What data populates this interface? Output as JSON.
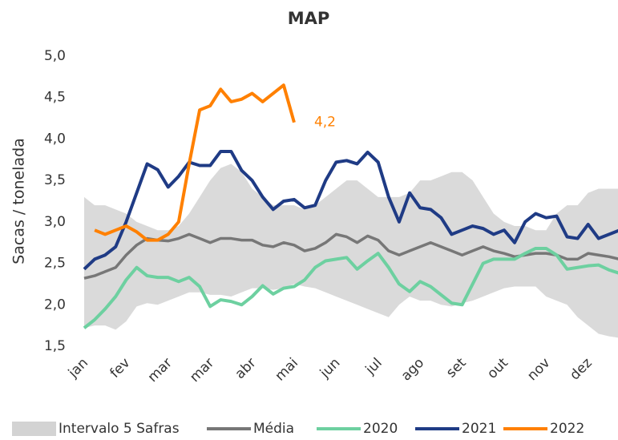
{
  "chart_data": {
    "type": "line",
    "title": "MAP",
    "ylabel": "Sacas / tonelada",
    "categories": [
      "jan",
      null,
      null,
      null,
      "fev",
      null,
      null,
      null,
      "mar",
      null,
      null,
      null,
      "mar",
      null,
      null,
      null,
      "abr",
      null,
      null,
      null,
      "mai",
      null,
      null,
      null,
      "jun",
      null,
      null,
      null,
      "jul",
      null,
      null,
      null,
      "ago",
      null,
      null,
      null,
      "set",
      null,
      null,
      null,
      "out",
      null,
      null,
      null,
      "nov",
      null,
      null,
      null,
      "dez",
      null,
      null,
      null
    ],
    "ylim": [
      1.5,
      5.0
    ],
    "yticks": [
      {
        "value": 1.5,
        "label": "1,5"
      },
      {
        "value": 2.0,
        "label": "2,0"
      },
      {
        "value": 2.5,
        "label": "2,5"
      },
      {
        "value": 3.0,
        "label": "3,0"
      },
      {
        "value": 3.5,
        "label": "3,5"
      },
      {
        "value": 4.0,
        "label": "4,0"
      },
      {
        "value": 4.5,
        "label": "4,5"
      },
      {
        "value": 5.0,
        "label": "5,0"
      }
    ],
    "legend": "bottom",
    "series": [
      {
        "name": "Intervalo 5 Safras",
        "color": "#d3d3d3",
        "upper": [
          3.3,
          3.2,
          3.2,
          3.15,
          3.1,
          3.0,
          2.95,
          2.9,
          2.9,
          2.95,
          3.1,
          3.3,
          3.5,
          3.65,
          3.7,
          3.6,
          3.4,
          3.3,
          3.2,
          3.2,
          3.2,
          3.15,
          3.2,
          3.3,
          3.4,
          3.5,
          3.5,
          3.4,
          3.3,
          3.3,
          3.3,
          3.35,
          3.5,
          3.5,
          3.55,
          3.6,
          3.6,
          3.5,
          3.3,
          3.1,
          3.0,
          2.95,
          2.95,
          2.9,
          2.9,
          3.1,
          3.2,
          3.2,
          3.35,
          3.4,
          3.4,
          3.4
        ],
        "lower": [
          1.72,
          1.75,
          1.75,
          1.7,
          1.8,
          1.98,
          2.02,
          2.0,
          2.05,
          2.1,
          2.15,
          2.15,
          2.12,
          2.12,
          2.1,
          2.15,
          2.2,
          2.2,
          2.18,
          2.2,
          2.25,
          2.22,
          2.2,
          2.15,
          2.1,
          2.05,
          2.0,
          1.95,
          1.9,
          1.85,
          2.0,
          2.1,
          2.05,
          2.05,
          2.0,
          1.98,
          2.02,
          2.05,
          2.1,
          2.15,
          2.2,
          2.22,
          2.22,
          2.22,
          2.1,
          2.05,
          2.0,
          1.85,
          1.75,
          1.65,
          1.62,
          1.6
        ]
      },
      {
        "name": "Média",
        "color": "#777777",
        "values": [
          2.32,
          2.35,
          2.4,
          2.45,
          2.6,
          2.72,
          2.8,
          2.78,
          2.77,
          2.8,
          2.85,
          2.8,
          2.75,
          2.8,
          2.8,
          2.78,
          2.78,
          2.72,
          2.7,
          2.75,
          2.72,
          2.65,
          2.68,
          2.75,
          2.85,
          2.82,
          2.75,
          2.83,
          2.78,
          2.65,
          2.6,
          2.65,
          2.7,
          2.75,
          2.7,
          2.65,
          2.6,
          2.65,
          2.7,
          2.65,
          2.62,
          2.58,
          2.6,
          2.62,
          2.62,
          2.6,
          2.55,
          2.55,
          2.62,
          2.6,
          2.58,
          2.55
        ]
      },
      {
        "name": "2020",
        "color": "#6dd0a0",
        "values": [
          1.72,
          1.82,
          1.95,
          2.1,
          2.3,
          2.45,
          2.35,
          2.33,
          2.33,
          2.28,
          2.33,
          2.22,
          1.98,
          2.06,
          2.04,
          2.0,
          2.1,
          2.23,
          2.13,
          2.2,
          2.22,
          2.3,
          2.45,
          2.53,
          2.55,
          2.57,
          2.43,
          2.53,
          2.62,
          2.45,
          2.25,
          2.16,
          2.28,
          2.22,
          2.12,
          2.02,
          2.0,
          2.25,
          2.5,
          2.55,
          2.55,
          2.55,
          2.62,
          2.68,
          2.68,
          2.6,
          2.43,
          2.45,
          2.47,
          2.48,
          2.42,
          2.38
        ]
      },
      {
        "name": "2021",
        "color": "#1f3b85",
        "values": [
          2.43,
          2.55,
          2.6,
          2.7,
          3.0,
          3.35,
          3.7,
          3.63,
          3.42,
          3.55,
          3.72,
          3.68,
          3.68,
          3.85,
          3.85,
          3.62,
          3.5,
          3.3,
          3.15,
          3.25,
          3.27,
          3.17,
          3.2,
          3.5,
          3.72,
          3.74,
          3.7,
          3.84,
          3.72,
          3.3,
          3.0,
          3.35,
          3.17,
          3.15,
          3.05,
          2.85,
          2.9,
          2.95,
          2.92,
          2.85,
          2.9,
          2.75,
          3.0,
          3.1,
          3.05,
          3.07,
          2.82,
          2.8,
          2.97,
          2.8,
          2.85,
          2.9
        ]
      },
      {
        "name": "2022",
        "color": "#ff8000",
        "values": [
          null,
          2.9,
          2.85,
          2.9,
          2.95,
          2.88,
          2.78,
          2.78,
          2.85,
          3.0,
          3.7,
          4.35,
          4.4,
          4.6,
          4.45,
          4.48,
          4.55,
          4.45,
          4.55,
          4.65,
          4.2,
          null,
          null,
          null,
          null,
          null,
          null,
          null,
          null,
          null,
          null,
          null,
          null,
          null,
          null,
          null,
          null,
          null,
          null,
          null,
          null,
          null,
          null,
          null,
          null,
          null,
          null,
          null,
          null,
          null,
          null,
          null
        ]
      }
    ],
    "annotations": [
      {
        "text": "4,2",
        "series": 4,
        "index": 20
      }
    ]
  }
}
